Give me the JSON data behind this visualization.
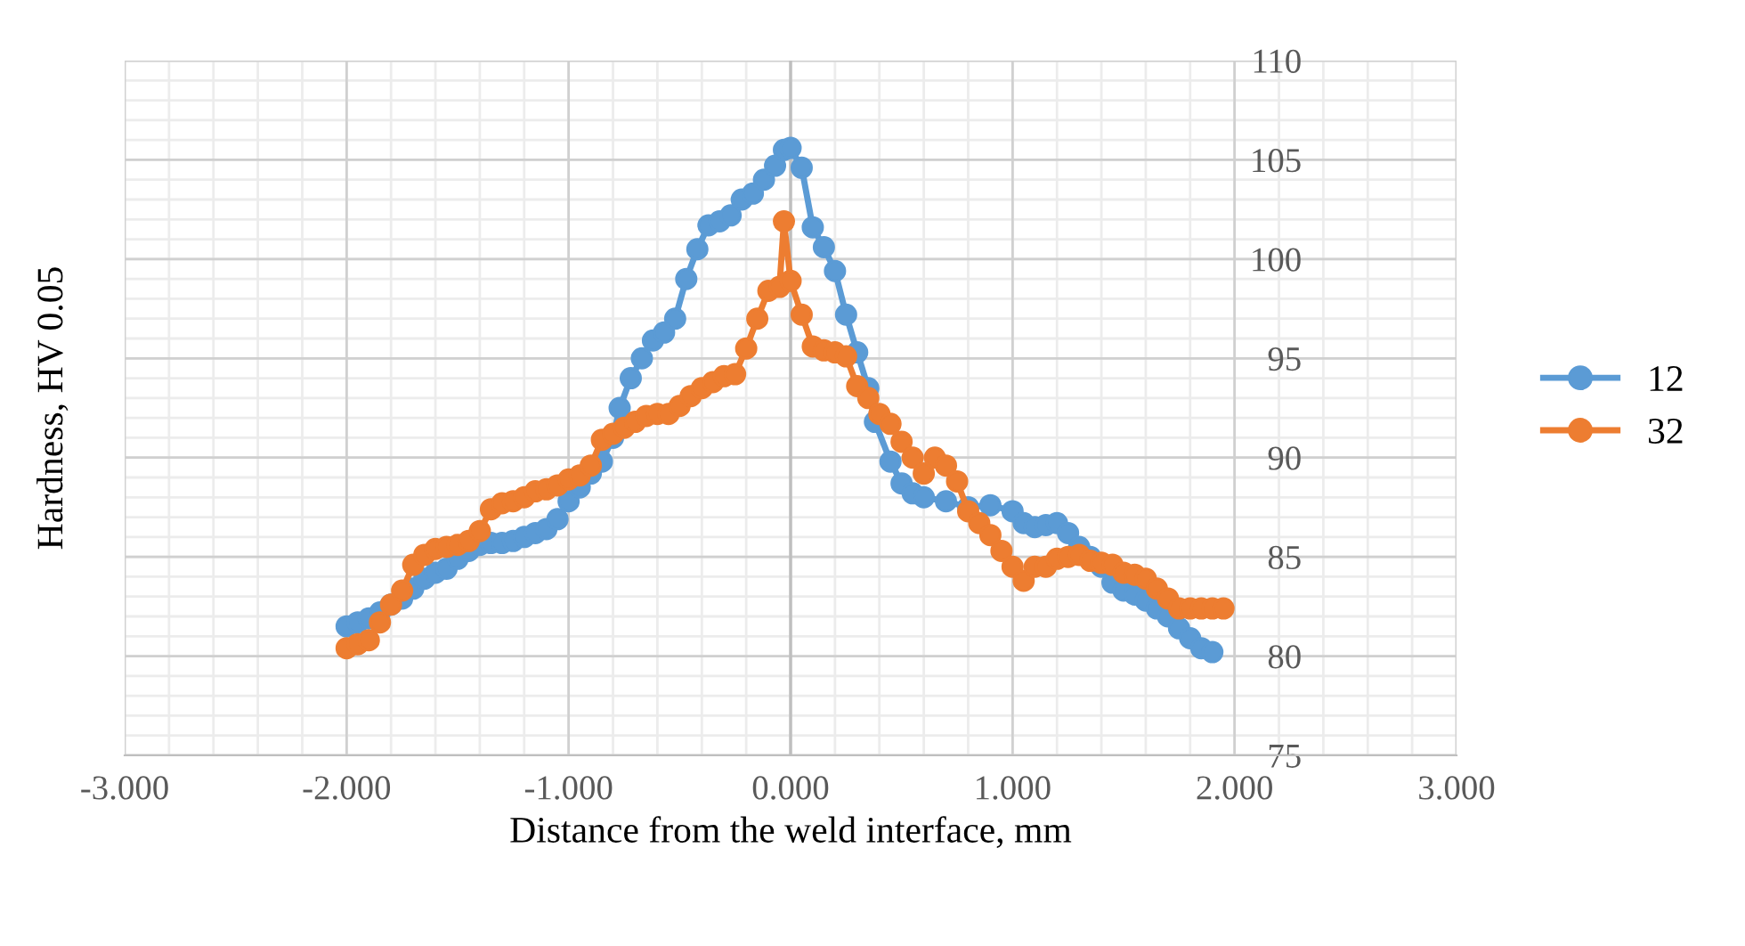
{
  "chart_data": {
    "type": "line",
    "xlabel": "Distance from the weld interface, mm",
    "ylabel": "Hardness, HV 0.05",
    "xlim": [
      -3,
      3
    ],
    "xticks": [
      {
        "value": -3,
        "label": "-3.000"
      },
      {
        "value": -2,
        "label": "-2.000"
      },
      {
        "value": -1,
        "label": "-1.000"
      },
      {
        "value": 0,
        "label": "0.000"
      },
      {
        "value": 1,
        "label": "1.000"
      },
      {
        "value": 2,
        "label": "2.000"
      },
      {
        "value": 3,
        "label": "3.000"
      }
    ],
    "ylim": [
      75,
      110
    ],
    "yticks": [
      75,
      80,
      85,
      90,
      95,
      100,
      105,
      110
    ],
    "grid": true,
    "legend": "right",
    "marker": "circle",
    "line_style": "solid",
    "series": [
      {
        "name": "12",
        "color": "#5b9bd5",
        "x": [
          -2.0,
          -1.95,
          -1.9,
          -1.85,
          -1.8,
          -1.75,
          -1.7,
          -1.65,
          -1.6,
          -1.55,
          -1.5,
          -1.45,
          -1.4,
          -1.35,
          -1.3,
          -1.25,
          -1.2,
          -1.15,
          -1.1,
          -1.05,
          -1.0,
          -0.95,
          -0.9,
          -0.85,
          -0.8,
          -0.77,
          -0.72,
          -0.67,
          -0.62,
          -0.57,
          -0.52,
          -0.47,
          -0.42,
          -0.37,
          -0.32,
          -0.27,
          -0.22,
          -0.17,
          -0.12,
          -0.07,
          -0.03,
          0.0,
          0.05,
          0.1,
          0.15,
          0.2,
          0.25,
          0.3,
          0.35,
          0.38,
          0.45,
          0.5,
          0.55,
          0.6,
          0.7,
          0.8,
          0.9,
          1.0,
          1.05,
          1.1,
          1.15,
          1.2,
          1.25,
          1.3,
          1.35,
          1.4,
          1.45,
          1.5,
          1.55,
          1.6,
          1.65,
          1.7,
          1.75,
          1.8,
          1.85,
          1.9
        ],
        "values": [
          81.5,
          81.7,
          81.9,
          82.2,
          82.6,
          82.9,
          83.4,
          83.9,
          84.2,
          84.4,
          84.9,
          85.3,
          85.6,
          85.7,
          85.7,
          85.8,
          86.0,
          86.2,
          86.4,
          86.9,
          87.8,
          88.5,
          89.2,
          89.8,
          91.0,
          92.5,
          94.0,
          95.0,
          95.9,
          96.3,
          97.0,
          99.0,
          100.5,
          101.7,
          101.9,
          102.2,
          103.0,
          103.3,
          104.0,
          104.7,
          105.5,
          105.6,
          104.6,
          101.6,
          100.6,
          99.4,
          97.2,
          95.3,
          93.5,
          91.8,
          89.8,
          88.7,
          88.2,
          88.0,
          87.8,
          87.5,
          87.6,
          87.3,
          86.7,
          86.5,
          86.6,
          86.7,
          86.2,
          85.5,
          85.0,
          84.5,
          83.7,
          83.3,
          83.1,
          82.8,
          82.4,
          82.0,
          81.4,
          80.9,
          80.4,
          80.2
        ]
      },
      {
        "name": "32",
        "color": "#ed7d31",
        "x": [
          -2.0,
          -1.95,
          -1.9,
          -1.85,
          -1.8,
          -1.75,
          -1.7,
          -1.65,
          -1.6,
          -1.55,
          -1.5,
          -1.45,
          -1.4,
          -1.35,
          -1.3,
          -1.25,
          -1.2,
          -1.15,
          -1.1,
          -1.05,
          -1.0,
          -0.95,
          -0.9,
          -0.85,
          -0.8,
          -0.75,
          -0.7,
          -0.65,
          -0.6,
          -0.55,
          -0.5,
          -0.45,
          -0.4,
          -0.35,
          -0.3,
          -0.25,
          -0.2,
          -0.15,
          -0.1,
          -0.05,
          -0.03,
          0.0,
          0.05,
          0.1,
          0.15,
          0.2,
          0.25,
          0.3,
          0.35,
          0.4,
          0.45,
          0.5,
          0.55,
          0.6,
          0.65,
          0.7,
          0.75,
          0.8,
          0.85,
          0.9,
          0.95,
          1.0,
          1.05,
          1.1,
          1.15,
          1.2,
          1.25,
          1.3,
          1.35,
          1.4,
          1.45,
          1.5,
          1.55,
          1.6,
          1.65,
          1.7,
          1.75,
          1.8,
          1.85,
          1.9,
          1.95
        ],
        "values": [
          80.4,
          80.6,
          80.8,
          81.7,
          82.6,
          83.3,
          84.6,
          85.1,
          85.4,
          85.5,
          85.6,
          85.8,
          86.3,
          87.4,
          87.7,
          87.8,
          88.0,
          88.3,
          88.4,
          88.6,
          88.9,
          89.1,
          89.6,
          90.9,
          91.2,
          91.5,
          91.8,
          92.1,
          92.2,
          92.2,
          92.6,
          93.1,
          93.5,
          93.8,
          94.1,
          94.2,
          95.5,
          97.0,
          98.4,
          98.6,
          101.9,
          98.9,
          97.2,
          95.6,
          95.4,
          95.3,
          95.1,
          93.6,
          93.0,
          92.2,
          91.7,
          90.8,
          90.0,
          89.2,
          90.0,
          89.6,
          88.8,
          87.3,
          86.7,
          86.1,
          85.3,
          84.5,
          83.8,
          84.5,
          84.5,
          84.9,
          85.0,
          85.1,
          84.8,
          84.7,
          84.6,
          84.2,
          84.1,
          83.9,
          83.4,
          82.9,
          82.4,
          82.4,
          82.4,
          82.4,
          82.4
        ]
      }
    ]
  }
}
